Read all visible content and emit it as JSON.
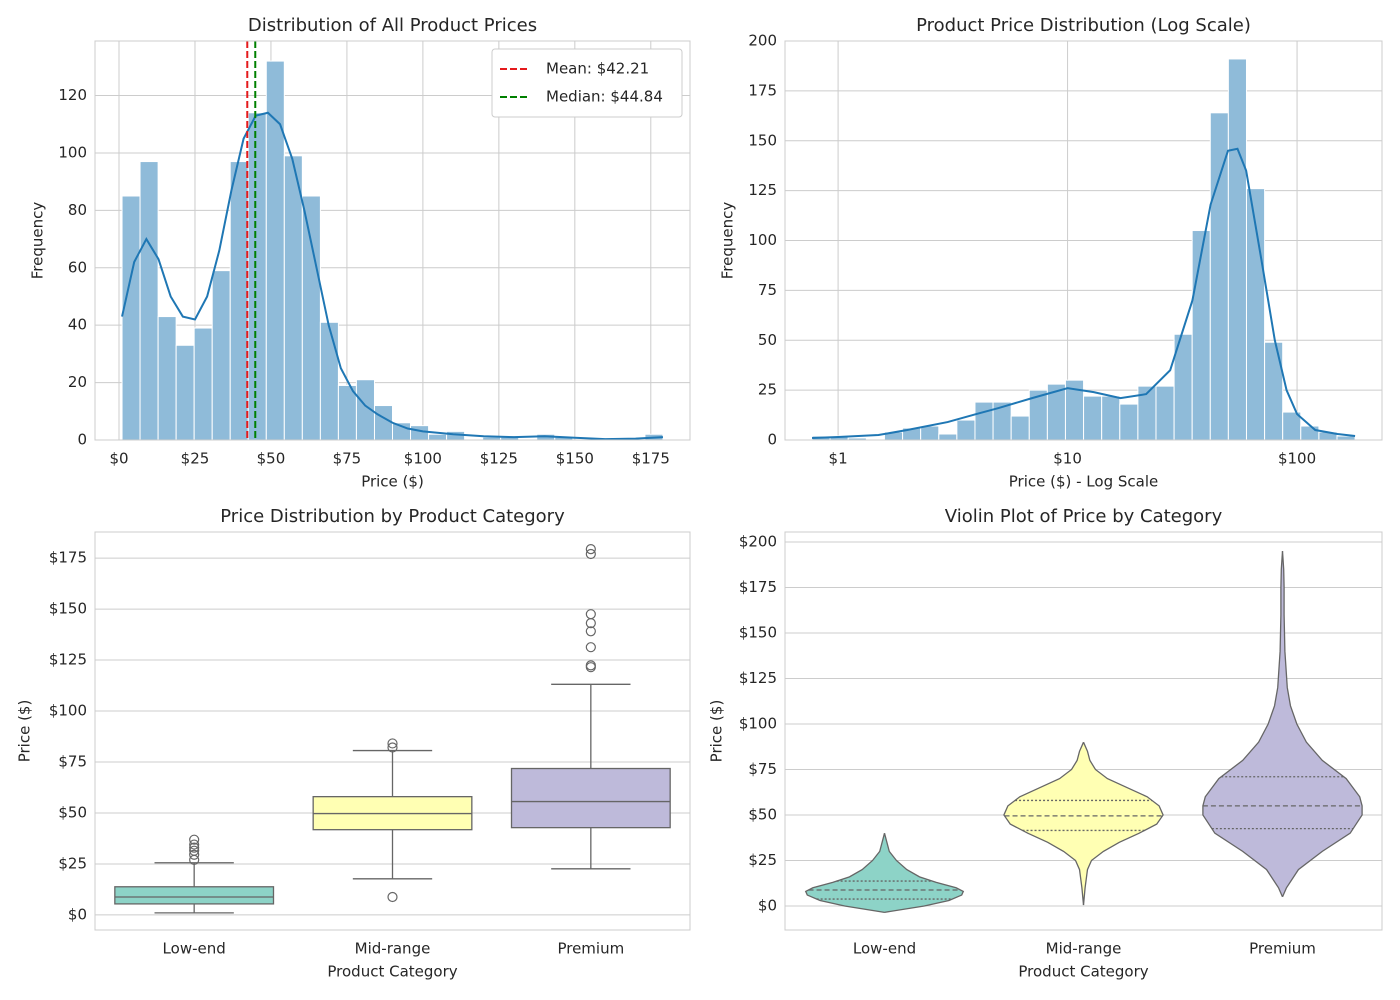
{
  "chart_data": [
    {
      "type": "histogram",
      "title": "Distribution of All Product Prices",
      "xlabel": "Price ($)",
      "ylabel": "Frequency",
      "bins": [
        1,
        6.93,
        12.87,
        18.8,
        24.73,
        30.67,
        36.6,
        42.53,
        48.47,
        54.4,
        60.33,
        66.27,
        72.2,
        78.13,
        84.07,
        90,
        95.93,
        101.87,
        107.8,
        113.73,
        119.67,
        125.6,
        131.53,
        137.47,
        143.4,
        149.33,
        155.27,
        161.2,
        167.13,
        173.07,
        179
      ],
      "values": [
        85,
        97,
        43,
        33,
        39,
        59,
        97,
        114,
        132,
        99,
        85,
        41,
        19,
        21,
        12,
        6,
        5,
        2,
        3,
        0,
        1,
        1,
        0,
        2,
        1,
        0,
        0,
        0,
        0,
        2
      ],
      "color": "#8fbbd9",
      "kde": {
        "color": "#1f77b4",
        "x": [
          1,
          5,
          9,
          13,
          17,
          21,
          25,
          29,
          33,
          37,
          41,
          45,
          49,
          53,
          57,
          61,
          65,
          69,
          73,
          77,
          81,
          85,
          90,
          95,
          100,
          110,
          120,
          130,
          140,
          150,
          160,
          170,
          179
        ],
        "values": [
          43,
          62,
          70,
          63,
          50,
          43,
          42,
          50,
          66,
          87,
          105,
          113,
          114,
          110,
          98,
          80,
          60,
          40,
          25,
          17,
          12,
          9,
          6,
          4,
          3,
          2,
          1.3,
          1,
          1.3,
          0.8,
          0.3,
          0.5,
          1
        ]
      },
      "vlines": [
        {
          "value": 42.21,
          "label": "Mean: $42.21",
          "color": "#e41a1c"
        },
        {
          "value": 44.84,
          "label": "Median: $44.84",
          "color": "#008000"
        }
      ],
      "legend": "upper right",
      "xlim": [
        -7.9,
        187.9
      ],
      "xticks": [
        {
          "value": 0,
          "label": "$0"
        },
        {
          "value": 25,
          "label": "$25"
        },
        {
          "value": 50,
          "label": "$50"
        },
        {
          "value": 75,
          "label": "$75"
        },
        {
          "value": 100,
          "label": "$100"
        },
        {
          "value": 125,
          "label": "$125"
        },
        {
          "value": 150,
          "label": "$150"
        },
        {
          "value": 175,
          "label": "$175"
        }
      ],
      "ylim": [
        0,
        139
      ],
      "yticks": [
        0,
        20,
        40,
        60,
        80,
        100,
        120
      ],
      "grid": true
    },
    {
      "type": "histogram",
      "title": "Product Price Distribution (Log Scale)",
      "xlabel": "Price ($) - Log Scale",
      "ylabel": "Frequency",
      "xscale": "log",
      "bins": [
        0.77,
        0.923,
        1.107,
        1.328,
        1.592,
        1.91,
        2.29,
        2.747,
        3.293,
        3.949,
        4.735,
        5.678,
        6.809,
        8.166,
        9.79,
        11.74,
        14.08,
        16.89,
        20.25,
        24.28,
        29.12,
        34.91,
        41.87,
        50.2,
        60.2,
        72.2,
        86.58,
        103.8,
        124.5,
        149.3,
        179
      ],
      "values": [
        2,
        2,
        1,
        0,
        4,
        6,
        7,
        3,
        10,
        19,
        19,
        12,
        25,
        28,
        30,
        22,
        22,
        18,
        27,
        27,
        53,
        105,
        164,
        191,
        126,
        49,
        14,
        7,
        4,
        2
      ],
      "color": "#8fbbd9",
      "kde": {
        "color": "#1f77b4",
        "x": [
          0.77,
          1,
          1.5,
          2,
          3,
          4,
          5,
          7,
          10,
          13,
          17,
          22,
          28,
          35,
          42,
          50,
          55,
          60,
          70,
          80,
          90,
          100,
          120,
          150,
          179
        ],
        "values": [
          1,
          1.5,
          2.5,
          5,
          9,
          13,
          16,
          21,
          26,
          24,
          21,
          23,
          35,
          70,
          118,
          145,
          146,
          135,
          90,
          50,
          25,
          13,
          5,
          3,
          2
        ]
      },
      "xlim": [
        0.587,
        234.5
      ],
      "xticks": [
        {
          "value": 1,
          "label": "$1"
        },
        {
          "value": 10,
          "label": "$10"
        },
        {
          "value": 100,
          "label": "$100"
        }
      ],
      "ylim": [
        0,
        200
      ],
      "yticks": [
        0,
        25,
        50,
        75,
        100,
        125,
        150,
        175,
        200
      ],
      "grid": true
    },
    {
      "type": "box",
      "title": "Price Distribution by Product Category",
      "xlabel": "Product Category",
      "ylabel": "Price ($)",
      "categories": [
        "Low-end",
        "Mid-range",
        "Premium"
      ],
      "colors": [
        "#8dd3c7",
        "#ffffb3",
        "#bebada"
      ],
      "line_color": "#666666",
      "boxes": [
        {
          "whislo": 1,
          "q1": 5.4,
          "med": 8.8,
          "q3": 13.8,
          "whishi": 25.6,
          "fliers": [
            27,
            29.5,
            31.5,
            33,
            34.5,
            36.9
          ]
        },
        {
          "whislo": 17.7,
          "q1": 41.8,
          "med": 49.7,
          "q3": 58,
          "whishi": 80.6,
          "fliers": [
            8.8,
            82.1,
            84.1
          ]
        },
        {
          "whislo": 22.6,
          "q1": 42.8,
          "med": 55.6,
          "q3": 71.8,
          "whishi": 113.1,
          "fliers": [
            121.5,
            122.4,
            131.3,
            139.1,
            143.1,
            147.5,
            177,
            179.4
          ]
        }
      ],
      "ylim": [
        -7.4,
        187.8
      ],
      "yticks": [
        {
          "value": 0,
          "label": "$0"
        },
        {
          "value": 25,
          "label": "$25"
        },
        {
          "value": 50,
          "label": "$50"
        },
        {
          "value": 75,
          "label": "$75"
        },
        {
          "value": 100,
          "label": "$100"
        },
        {
          "value": 125,
          "label": "$125"
        },
        {
          "value": 150,
          "label": "$150"
        },
        {
          "value": 175,
          "label": "$175"
        }
      ],
      "grid": true
    },
    {
      "type": "violin",
      "title": "Violin Plot of Price by Category",
      "xlabel": "Product Category",
      "ylabel": "Price ($)",
      "categories": [
        "Low-end",
        "Mid-range",
        "Premium"
      ],
      "colors": [
        "#8dd3c7",
        "#ffffb3",
        "#bebada"
      ],
      "line_color": "#666666",
      "violins": [
        {
          "y": [
            -3.5,
            0,
            3,
            6,
            8,
            10,
            13,
            16,
            20,
            25,
            30,
            35,
            40
          ],
          "density": [
            0,
            0.5,
            0.81,
            0.97,
            0.99,
            0.9,
            0.65,
            0.44,
            0.28,
            0.15,
            0.06,
            0.03,
            0
          ],
          "quartiles": [
            3.8,
            8.8,
            13.7
          ]
        },
        {
          "y": [
            0.5,
            10,
            20,
            25,
            30,
            35,
            40,
            45,
            50,
            55,
            60,
            65,
            70,
            75,
            80,
            85,
            90
          ],
          "density": [
            0,
            0.02,
            0.05,
            0.1,
            0.25,
            0.45,
            0.7,
            0.92,
            1,
            0.95,
            0.8,
            0.55,
            0.3,
            0.15,
            0.08,
            0.05,
            0
          ],
          "quartiles": [
            41.5,
            49.5,
            58
          ]
        },
        {
          "y": [
            5,
            10,
            20,
            30,
            40,
            50,
            55,
            60,
            70,
            80,
            90,
            100,
            110,
            120,
            140,
            160,
            175,
            185,
            195
          ],
          "density": [
            0,
            0.05,
            0.2,
            0.5,
            0.85,
            1,
            1,
            0.97,
            0.8,
            0.5,
            0.3,
            0.18,
            0.1,
            0.06,
            0.03,
            0.02,
            0.02,
            0.015,
            0
          ],
          "quartiles": [
            42.5,
            55,
            71
          ]
        }
      ],
      "ylim": [
        -13.2,
        205.5
      ],
      "yticks": [
        {
          "value": 0,
          "label": "$0"
        },
        {
          "value": 25,
          "label": "$25"
        },
        {
          "value": 50,
          "label": "$50"
        },
        {
          "value": 75,
          "label": "$75"
        },
        {
          "value": 100,
          "label": "$100"
        },
        {
          "value": 125,
          "label": "$125"
        },
        {
          "value": 150,
          "label": "$150"
        },
        {
          "value": 175,
          "label": "$175"
        },
        {
          "value": 200,
          "label": "$200"
        }
      ],
      "grid": true
    }
  ]
}
